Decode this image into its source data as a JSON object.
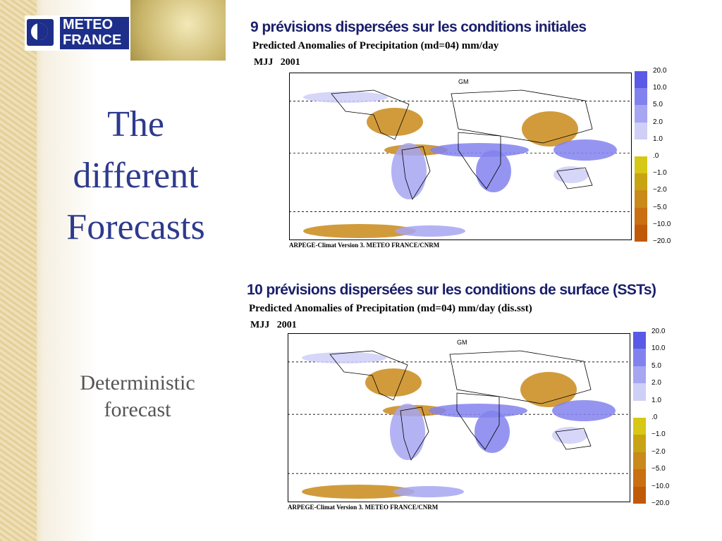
{
  "logo": {
    "line1": "METEO",
    "line2": "FRANCE"
  },
  "slide": {
    "title": "The different Forecasts",
    "subtitle": "Deterministic forecast"
  },
  "panels": [
    {
      "header": "9 prévisions dispersées sur les conditions initiales",
      "subtitle": "Predicted Anomalies of Precipitation (md=04) mm/day",
      "period": "MJJ   2001",
      "map_label": "GM",
      "footer": "ARPEGE-Climat Version 3.  METEO FRANCE/CNRM",
      "legend": [
        "20.0",
        "10.0",
        "5.0",
        "2.0",
        "1.0",
        ".0",
        "−1.0",
        "−2.0",
        "−5.0",
        "−10.0",
        "−20.0"
      ]
    },
    {
      "header": "10 prévisions dispersées sur les conditions de surface (SSTs)",
      "subtitle": "Predicted Anomalies of Precipitation (md=04) mm/day (dis.sst)",
      "period": "MJJ   2001",
      "map_label": "GM",
      "footer": "ARPEGE-Climat Version 3.  METEO FRANCE/CNRM",
      "legend": [
        "20.0",
        "10.0",
        "5.0",
        "2.0",
        "1.0",
        ".0",
        "−1.0",
        "−2.0",
        "−5.0",
        "−10.0",
        "−20.0"
      ]
    }
  ]
}
